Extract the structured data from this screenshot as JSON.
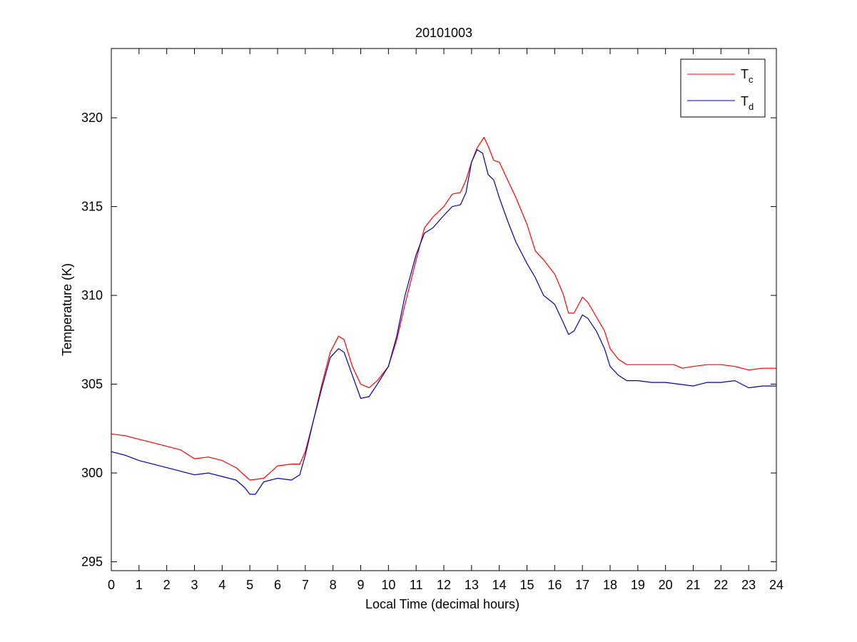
{
  "chart_data": {
    "type": "line",
    "title": "20101003",
    "xlabel": "Local Time (decimal hours)",
    "ylabel": "Temperature (K)",
    "xlim": [
      0,
      24
    ],
    "ylim": [
      294.5,
      323.9
    ],
    "xticks": [
      0,
      1,
      2,
      3,
      4,
      5,
      6,
      7,
      8,
      9,
      10,
      11,
      12,
      13,
      14,
      15,
      16,
      17,
      18,
      19,
      20,
      21,
      22,
      23,
      24
    ],
    "yticks": [
      295,
      300,
      305,
      310,
      315,
      320
    ],
    "grid": false,
    "legend": "top-right",
    "series": [
      {
        "name": "T",
        "subscript": "c",
        "color": "#ff0000",
        "x": [
          0,
          0.5,
          1,
          1.5,
          2,
          2.5,
          3,
          3.5,
          4,
          4.5,
          5,
          5.5,
          6,
          6.5,
          6.8,
          7,
          7.3,
          7.6,
          7.9,
          8.2,
          8.4,
          8.7,
          9,
          9.3,
          9.6,
          10,
          10.3,
          10.6,
          11,
          11.3,
          11.6,
          12,
          12.3,
          12.6,
          12.8,
          13,
          13.2,
          13.45,
          13.6,
          13.8,
          14,
          14.3,
          14.6,
          15,
          15.3,
          15.6,
          16,
          16.3,
          16.5,
          16.7,
          17,
          17.2,
          17.5,
          17.8,
          18,
          18.3,
          18.6,
          19,
          19.5,
          20,
          20.3,
          20.6,
          21,
          21.5,
          22,
          22.5,
          23,
          23.5,
          24
        ],
        "y": [
          302.2,
          302.1,
          301.9,
          301.7,
          301.5,
          301.3,
          300.8,
          300.9,
          300.7,
          300.3,
          299.6,
          299.7,
          300.4,
          300.5,
          300.5,
          301.2,
          303,
          305,
          306.8,
          307.7,
          307.5,
          306,
          305,
          304.8,
          305.2,
          306,
          307.5,
          309.5,
          312,
          313.8,
          314.4,
          315,
          315.7,
          315.8,
          316.5,
          317.5,
          318.3,
          318.9,
          318.4,
          317.6,
          317.5,
          316.5,
          315.5,
          314,
          312.5,
          312,
          311.2,
          310.1,
          309,
          309,
          309.9,
          309.6,
          308.8,
          308,
          307,
          306.4,
          306.1,
          306.1,
          306.1,
          306.1,
          306.1,
          305.9,
          306,
          306.1,
          306.1,
          306,
          305.8,
          305.9,
          305.9
        ]
      },
      {
        "name": "T",
        "subscript": "d",
        "color": "#0000aa",
        "x": [
          0,
          0.5,
          1,
          1.5,
          2,
          2.5,
          3,
          3.5,
          4,
          4.5,
          4.8,
          5,
          5.2,
          5.5,
          6,
          6.5,
          6.8,
          7,
          7.3,
          7.6,
          7.9,
          8.2,
          8.4,
          8.7,
          9,
          9.3,
          9.6,
          10,
          10.3,
          10.6,
          11,
          11.3,
          11.6,
          12,
          12.3,
          12.6,
          12.8,
          13,
          13.2,
          13.4,
          13.6,
          13.8,
          14,
          14.3,
          14.6,
          15,
          15.3,
          15.6,
          16,
          16.3,
          16.5,
          16.7,
          17,
          17.2,
          17.5,
          17.8,
          18,
          18.3,
          18.6,
          19,
          19.5,
          20,
          20.5,
          21,
          21.5,
          22,
          22.5,
          23,
          23.5,
          24
        ],
        "y": [
          301.2,
          301,
          300.7,
          300.5,
          300.3,
          300.1,
          299.9,
          300,
          299.8,
          299.6,
          299.2,
          298.8,
          298.8,
          299.5,
          299.7,
          299.6,
          299.9,
          301,
          303,
          304.8,
          306.5,
          307,
          306.8,
          305.5,
          304.2,
          304.3,
          305,
          306,
          307.7,
          310,
          312.3,
          313.5,
          313.8,
          314.5,
          315,
          315.1,
          315.8,
          317.5,
          318.2,
          318,
          316.8,
          316.5,
          315.5,
          314.2,
          313,
          311.8,
          311,
          310,
          309.5,
          308.5,
          307.8,
          308,
          308.9,
          308.7,
          308,
          307,
          306,
          305.5,
          305.2,
          305.2,
          305.1,
          305.1,
          305,
          304.9,
          305.1,
          305.1,
          305.2,
          304.8,
          304.9,
          304.9
        ]
      }
    ]
  }
}
